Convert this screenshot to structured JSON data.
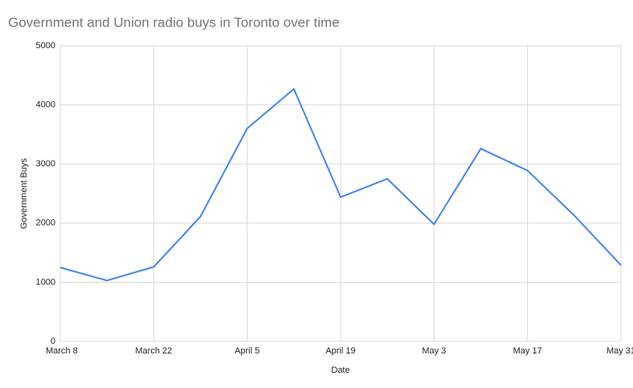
{
  "chart_data": {
    "type": "line",
    "title": "Government and Union radio buys in Toronto over time",
    "x_label": "Date",
    "y_label": "Government Buys",
    "categories": [
      "March 8",
      null,
      "March 22",
      null,
      "April 5",
      null,
      "April 19",
      null,
      "May 3",
      null,
      "May 17",
      null,
      "May 31"
    ],
    "series": [
      {
        "name": "Government Buys",
        "color": "#4285f4",
        "values": [
          1250,
          1030,
          1260,
          2110,
          3600,
          4270,
          2440,
          2750,
          1980,
          3260,
          2890,
          2130,
          1290
        ]
      }
    ],
    "ylim": [
      0,
      5000
    ],
    "yticks": [
      0,
      1000,
      2000,
      3000,
      4000,
      5000
    ],
    "grid": true
  }
}
